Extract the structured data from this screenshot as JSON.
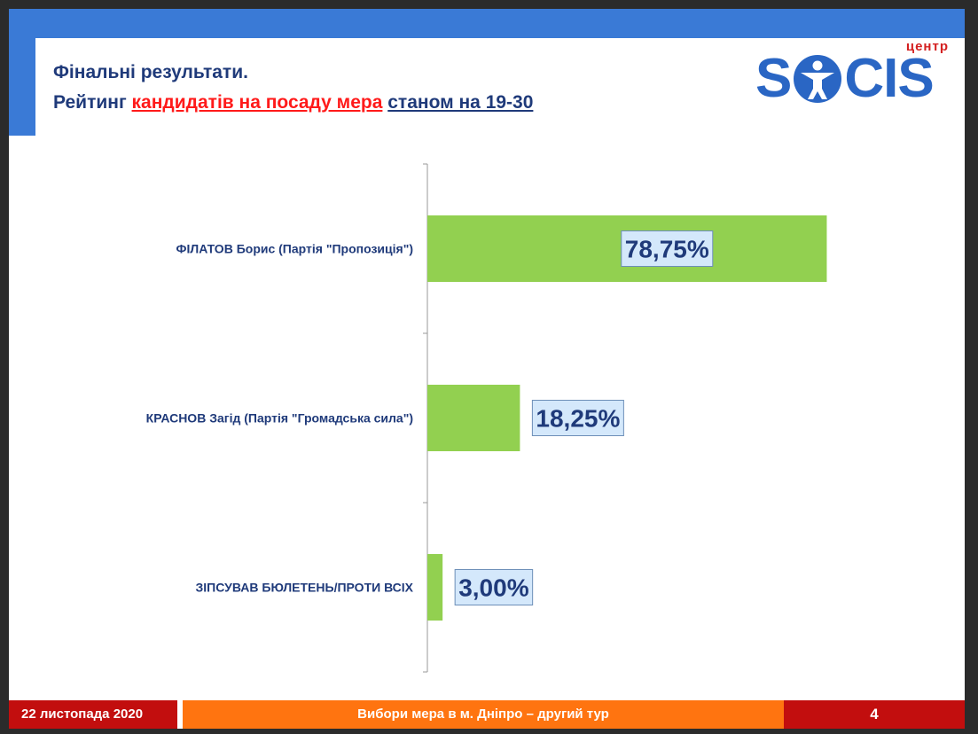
{
  "header": {
    "title_line1": "Фінальні результати.",
    "title_line2_prefix": "Рейтинг",
    "title_line2_red": "кандидатів на посаду мера",
    "title_line2_blue": "станом на 19-30"
  },
  "logo": {
    "small": "центр",
    "left": "S",
    "right": "CIS"
  },
  "colors": {
    "bar": "#92d050",
    "label_bg": "#d4e8fb",
    "text": "#1f3a7a",
    "accent_red": "#c20e0e",
    "accent_orange": "#ff7410",
    "brand_blue": "#2a66c4"
  },
  "chart_data": {
    "type": "bar",
    "orientation": "horizontal",
    "categories": [
      "ФІЛАТОВ Борис (Партія \"Пропозиція\")",
      "КРАСНОВ Загід (Партія \"Громадська сила\")",
      "ЗІПСУВАВ БЮЛЕТЕНЬ/ПРОТИ ВСІХ"
    ],
    "values": [
      78.75,
      18.25,
      3.0
    ],
    "value_labels": [
      "78,75%",
      "18,25%",
      "3,00%"
    ],
    "xlim": [
      0,
      100
    ],
    "grid": false
  },
  "footer": {
    "date": "22 листопада 2020",
    "event": "Вибори мера в м. Дніпро – другий тур",
    "page": "4"
  }
}
